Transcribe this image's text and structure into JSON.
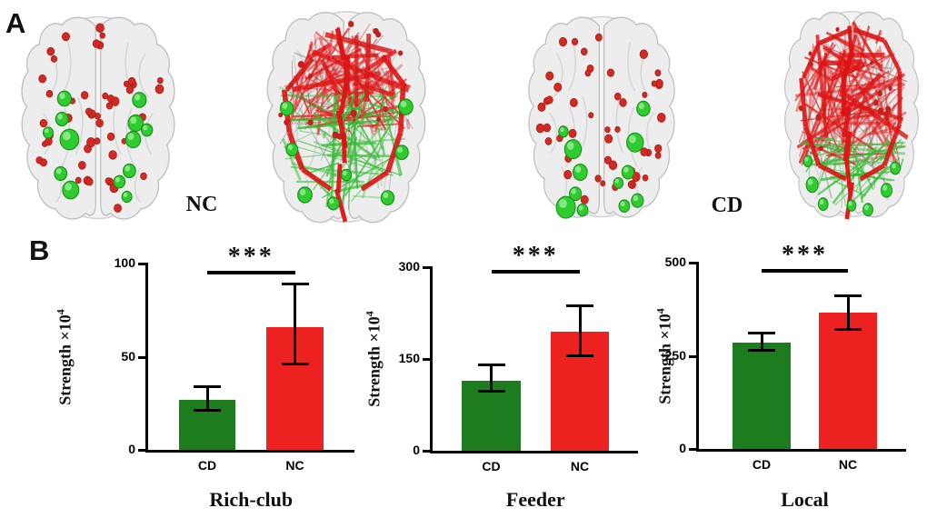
{
  "figure": {
    "panel_a_label": "A",
    "panel_b_label": "B",
    "group_labels": {
      "nc": "NC",
      "cd": "CD"
    }
  },
  "colors": {
    "bar_green": "#1d7c1d",
    "bar_red": "#ee2121",
    "node_red": "#d22a22",
    "node_green": "#2ecc2e",
    "edge_red": "#e21b1b",
    "edge_red_thick": "#dd1414",
    "edge_green": "#33bd33",
    "edge_gray": "#9b9b9b",
    "brain_fill": "#ededed",
    "brain_hull": "#f4f4f4",
    "brain_stroke": "#c2c2c2"
  },
  "chart_data": [
    {
      "type": "bar",
      "title": "Rich-club",
      "ylabel_base": "Strength ×10",
      "ylabel_exp": "4",
      "categories": [
        "CD",
        "NC"
      ],
      "values": [
        27,
        66
      ],
      "errors_low": [
        21,
        46
      ],
      "errors_high": [
        34,
        89
      ],
      "yticks": [
        0,
        50,
        100
      ],
      "ylim": [
        0,
        100
      ],
      "significance": "***",
      "bar_colors": [
        "#1d7c1d",
        "#ee2121"
      ],
      "grid": false,
      "legend_position": "none"
    },
    {
      "type": "bar",
      "title": "Feeder",
      "ylabel_base": "Strength ×10",
      "ylabel_exp": "4",
      "categories": [
        "CD",
        "NC"
      ],
      "values": [
        115,
        195
      ],
      "errors_low": [
        97,
        155
      ],
      "errors_high": [
        140,
        237
      ],
      "yticks": [
        0,
        150,
        300
      ],
      "ylim": [
        0,
        300
      ],
      "significance": "***",
      "bar_colors": [
        "#1d7c1d",
        "#ee2121"
      ],
      "grid": false,
      "legend_position": "none"
    },
    {
      "type": "bar",
      "title": "Local",
      "ylabel_base": "Strength ×10",
      "ylabel_exp": "4",
      "categories": [
        "CD",
        "NC"
      ],
      "values": [
        285,
        365
      ],
      "errors_low": [
        265,
        320
      ],
      "errors_high": [
        310,
        412
      ],
      "yticks": [
        0,
        250,
        500
      ],
      "ylim": [
        0,
        500
      ],
      "significance": "***",
      "bar_colors": [
        "#1d7c1d",
        "#ee2121"
      ],
      "grid": false,
      "legend_position": "none"
    }
  ]
}
